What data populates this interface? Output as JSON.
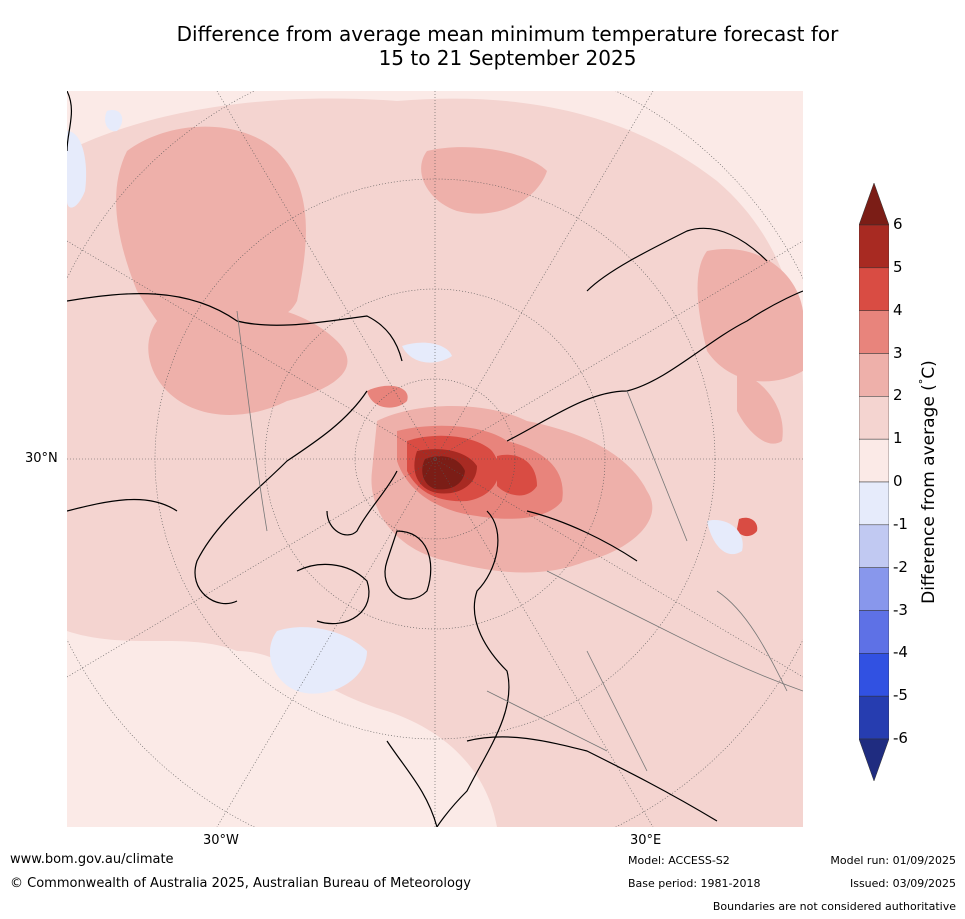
{
  "title": {
    "line1": "Difference from average mean minimum temperature forecast for",
    "line2": "15 to 21 September 2025"
  },
  "map": {
    "projection": "north-polar stereographic",
    "lat_label": "30°N",
    "lon_labels": [
      "30°W",
      "30°E"
    ]
  },
  "colorbar": {
    "label": "Difference from average (°C)",
    "label_main": "Difference from average (",
    "label_unit_prefix": "°",
    "label_unit": "C)",
    "ticks": [
      "6",
      "5",
      "4",
      "3",
      "2",
      "1",
      "0",
      "-1",
      "-2",
      "-3",
      "-4",
      "-5",
      "-6"
    ],
    "bins": [
      {
        "range": ">6",
        "color": "#7b1d16"
      },
      {
        "range": "5 to 6",
        "color": "#a82a22"
      },
      {
        "range": "4 to 5",
        "color": "#d94c43"
      },
      {
        "range": "3 to 4",
        "color": "#e8847c"
      },
      {
        "range": "2 to 3",
        "color": "#eeb0aa"
      },
      {
        "range": "1 to 2",
        "color": "#f4d4d0"
      },
      {
        "range": "0 to 1",
        "color": "#fbeae7"
      },
      {
        "range": "-1 to 0",
        "color": "#e6ebfb"
      },
      {
        "range": "-2 to -1",
        "color": "#c1c9f2"
      },
      {
        "range": "-3 to -2",
        "color": "#8897ec"
      },
      {
        "range": "-4 to -3",
        "color": "#5e71e6"
      },
      {
        "range": "-5 to -4",
        "color": "#3151e2"
      },
      {
        "range": "-6 to -5",
        "color": "#263db0"
      },
      {
        "range": "<-6",
        "color": "#1f2c80"
      }
    ]
  },
  "footer": {
    "website": "www.bom.gov.au/climate",
    "copyright": "© Commonwealth of Australia 2025, Australian Bureau of Meteorology",
    "model": "Model: ACCESS-S2",
    "base_period": "Base period: 1981-2018",
    "model_run": "Model run: 01/09/2025",
    "issued": "Issued: 03/09/2025",
    "disclaimer": "Boundaries are not considered authoritative"
  }
}
